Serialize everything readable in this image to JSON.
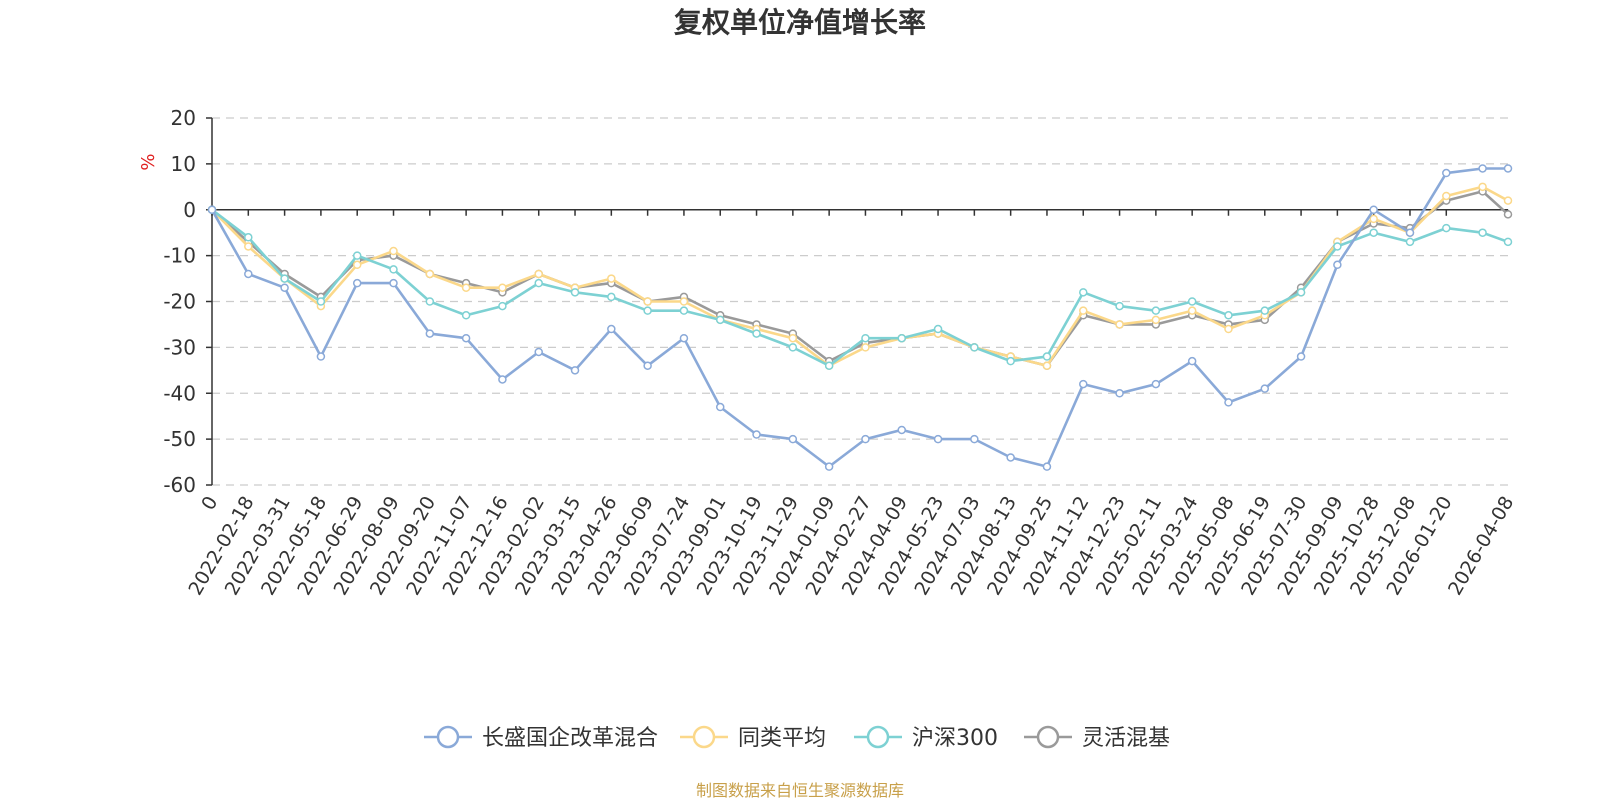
{
  "chart_data": {
    "type": "line",
    "title": "复权单位净值增长率",
    "ylabel": "%",
    "ylim": [
      -60,
      20
    ],
    "yticks": [
      20,
      10,
      0,
      -10,
      -20,
      -30,
      -40,
      -50,
      -60
    ],
    "x_tick_labels": [
      "0",
      "2022-02-18",
      "2022-03-31",
      "2022-05-18",
      "2022-06-29",
      "2022-08-09",
      "2022-09-20",
      "2022-11-07",
      "2022-12-16",
      "2023-02-02",
      "2023-03-15",
      "2023-04-26",
      "2023-06-09",
      "2023-07-24",
      "2023-09-01",
      "2023-10-19",
      "2023-11-29",
      "2024-01-09",
      "2024-02-27",
      "2024-04-09",
      "2024-05-23",
      "2024-07-03",
      "2024-08-13",
      "2024-09-25",
      "2024-11-12",
      "2024-12-23",
      "2025-02-11",
      "2025-03-24",
      "2025-05-08",
      "2025-06-19",
      "2025-07-30",
      "2025-09-09",
      "2025-10-28",
      "2025-12-08",
      "2026-01-20",
      "2026-04-08"
    ],
    "x_index": [
      0,
      1,
      2,
      3,
      4,
      5,
      6,
      7,
      8,
      9,
      10,
      11,
      12,
      13,
      14,
      15,
      16,
      17,
      18,
      19,
      20,
      21,
      22,
      23,
      24,
      25,
      26,
      27,
      28,
      29,
      30,
      31,
      32,
      33,
      34,
      35,
      35.7
    ],
    "series": [
      {
        "name": "长盛国企改革混合",
        "color": "#8aa9d8",
        "values": [
          0,
          -14,
          -17,
          -32,
          -16,
          -16,
          -27,
          -28,
          -37,
          -31,
          -35,
          -26,
          -34,
          -28,
          -43,
          -49,
          -50,
          -56,
          -50,
          -48,
          -50,
          -50,
          -54,
          -56,
          -38,
          -40,
          -38,
          -33,
          -42,
          -39,
          -32,
          -12,
          0,
          -5,
          8,
          9,
          9
        ]
      },
      {
        "name": "同类平均",
        "color": "#fbd88a",
        "values": [
          0,
          -8,
          -15,
          -21,
          -12,
          -9,
          -14,
          -17,
          -17,
          -14,
          -17,
          -15,
          -20,
          -20,
          -24,
          -26,
          -28,
          -34,
          -30,
          -28,
          -27,
          -30,
          -32,
          -34,
          -22,
          -25,
          -24,
          -22,
          -26,
          -23,
          -18,
          -7,
          -2,
          -5,
          3,
          5,
          2
        ]
      },
      {
        "name": "沪深300",
        "color": "#7dd1d3",
        "values": [
          0,
          -6,
          -15,
          -20,
          -10,
          -13,
          -20,
          -23,
          -21,
          -16,
          -18,
          -19,
          -22,
          -22,
          -24,
          -27,
          -30,
          -34,
          -28,
          -28,
          -26,
          -30,
          -33,
          -32,
          -18,
          -21,
          -22,
          -20,
          -23,
          -22,
          -18,
          -8,
          -5,
          -7,
          -4,
          -5,
          -7
        ]
      },
      {
        "name": "灵活混基",
        "color": "#9a9a9a",
        "values": [
          0,
          -7,
          -14,
          -19,
          -11,
          -10,
          -14,
          -16,
          -18,
          -14,
          -17,
          -16,
          -20,
          -19,
          -23,
          -25,
          -27,
          -33,
          -29,
          -28,
          -27,
          -30,
          -32,
          -34,
          -23,
          -25,
          -25,
          -23,
          -25,
          -24,
          -17,
          -7,
          -3,
          -4,
          2,
          4,
          -1
        ]
      }
    ],
    "legend_position": "bottom",
    "grid": true
  },
  "source_text": "制图数据来自恒生聚源数据库",
  "colors": {
    "axis": "#333333",
    "grid": "#cccccc",
    "unit": "#e02020",
    "source": "#c8a04a"
  }
}
